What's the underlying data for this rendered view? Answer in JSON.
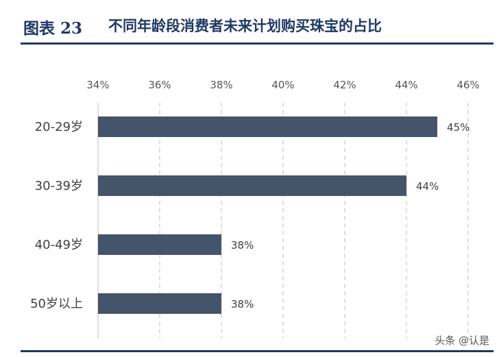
{
  "header": {
    "figure_label": "图表 23",
    "title": "不同年龄段消费者未来计划购买珠宝的占比"
  },
  "watermark": "头条 @认是",
  "colors": {
    "bar": "#44546a",
    "title": "#1f3864",
    "grid": "#c8c8c8"
  },
  "chart_data": {
    "type": "bar",
    "orientation": "horizontal",
    "title": "不同年龄段消费者未来计划购买珠宝的占比",
    "categories": [
      "20-29岁",
      "30-39岁",
      "40-49岁",
      "50岁以上"
    ],
    "values": [
      45,
      44,
      38,
      38
    ],
    "data_labels": [
      "45%",
      "44%",
      "38%",
      "38%"
    ],
    "xlim": [
      34,
      46
    ],
    "xticks": [
      34,
      36,
      38,
      40,
      42,
      44,
      46
    ],
    "xtick_labels": [
      "34%",
      "36%",
      "38%",
      "40%",
      "42%",
      "44%",
      "46%"
    ],
    "x_axis_position": "top",
    "grid": true,
    "grid_style": "dashed-vertical",
    "legend": "none"
  }
}
